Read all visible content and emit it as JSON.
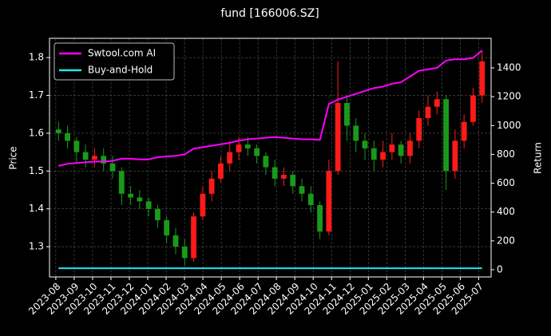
{
  "chart_data": {
    "type": "candlestick",
    "title": "fund [166006.SZ]",
    "ylabel": "Price",
    "y2label": "Return",
    "categories": [
      null,
      null,
      null,
      null,
      null,
      null,
      null,
      null,
      null,
      null,
      null,
      null,
      null,
      null,
      null,
      null,
      null,
      null,
      null,
      null,
      null,
      null,
      null,
      null,
      null,
      null,
      null,
      null,
      null,
      null,
      null,
      null,
      null,
      null,
      null,
      null,
      null,
      null,
      null,
      null,
      null,
      null,
      null,
      null,
      null,
      null,
      null,
      null
    ],
    "open": [
      1.61,
      1.6,
      1.58,
      1.55,
      1.53,
      1.54,
      1.52,
      1.5,
      1.44,
      1.43,
      1.42,
      1.4,
      1.37,
      1.33,
      1.3,
      1.27,
      1.38,
      1.44,
      1.48,
      1.52,
      1.55,
      1.57,
      1.56,
      1.54,
      1.51,
      1.48,
      1.49,
      1.46,
      1.44,
      1.41,
      1.34,
      1.5,
      1.68,
      1.62,
      1.58,
      1.56,
      1.53,
      1.55,
      1.57,
      1.54,
      1.58,
      1.64,
      1.67,
      1.69,
      1.5,
      1.58,
      1.63,
      1.7
    ],
    "high": [
      1.63,
      1.62,
      1.59,
      1.57,
      1.56,
      1.56,
      1.54,
      1.51,
      1.46,
      1.45,
      1.43,
      1.41,
      1.38,
      1.35,
      1.32,
      1.39,
      1.46,
      1.5,
      1.54,
      1.58,
      1.59,
      1.59,
      1.57,
      1.55,
      1.53,
      1.51,
      1.5,
      1.48,
      1.46,
      1.42,
      1.53,
      1.79,
      1.7,
      1.64,
      1.6,
      1.58,
      1.58,
      1.6,
      1.58,
      1.6,
      1.66,
      1.7,
      1.71,
      1.7,
      1.61,
      1.65,
      1.72,
      1.82
    ],
    "low": [
      1.58,
      1.56,
      1.52,
      1.51,
      1.51,
      1.5,
      1.48,
      1.41,
      1.41,
      1.4,
      1.38,
      1.35,
      1.31,
      1.28,
      1.25,
      1.26,
      1.37,
      1.42,
      1.47,
      1.5,
      1.53,
      1.54,
      1.52,
      1.49,
      1.46,
      1.46,
      1.44,
      1.42,
      1.39,
      1.32,
      1.33,
      1.49,
      1.58,
      1.55,
      1.53,
      1.5,
      1.51,
      1.53,
      1.52,
      1.52,
      1.56,
      1.62,
      1.65,
      1.45,
      1.48,
      1.56,
      1.62,
      1.68
    ],
    "close": [
      1.6,
      1.58,
      1.55,
      1.53,
      1.54,
      1.52,
      1.5,
      1.44,
      1.43,
      1.42,
      1.4,
      1.37,
      1.33,
      1.3,
      1.27,
      1.38,
      1.44,
      1.48,
      1.52,
      1.55,
      1.57,
      1.56,
      1.54,
      1.51,
      1.48,
      1.49,
      1.46,
      1.44,
      1.41,
      1.34,
      1.5,
      1.68,
      1.62,
      1.58,
      1.56,
      1.53,
      1.55,
      1.57,
      1.54,
      1.58,
      1.64,
      1.67,
      1.69,
      1.5,
      1.58,
      1.63,
      1.7,
      1.79
    ],
    "up_color": "#ff1a1a",
    "down_color": "#1a9a1a",
    "series": [
      {
        "name": "Swtool.com AI",
        "color": "#ff00ff",
        "axis": "y2",
        "values": [
          720,
          735,
          740,
          745,
          750,
          750,
          755,
          770,
          770,
          765,
          765,
          780,
          785,
          790,
          800,
          840,
          850,
          860,
          870,
          880,
          895,
          905,
          910,
          915,
          920,
          915,
          910,
          905,
          905,
          900,
          1150,
          1180,
          1200,
          1220,
          1240,
          1260,
          1270,
          1290,
          1300,
          1340,
          1380,
          1390,
          1400,
          1450,
          1460,
          1460,
          1470,
          1520
        ]
      },
      {
        "name": "Buy-and-Hold",
        "color": "#22e5f0",
        "axis": "y2",
        "values": [
          10,
          10,
          10,
          10,
          10,
          10,
          10,
          10,
          10,
          10,
          10,
          10,
          10,
          10,
          10,
          10,
          10,
          10,
          10,
          10,
          10,
          10,
          10,
          10,
          10,
          10,
          10,
          10,
          10,
          10,
          10,
          10,
          10,
          10,
          10,
          10,
          10,
          10,
          10,
          10,
          10,
          10,
          10,
          10,
          10,
          10,
          10,
          10
        ]
      }
    ],
    "xlim": [
      -1,
      48
    ],
    "xticks": [
      {
        "value": -0.3,
        "label": "2023-08"
      },
      {
        "value": 1.74,
        "label": "2023-09"
      },
      {
        "value": 3.78,
        "label": "2023-10"
      },
      {
        "value": 5.82,
        "label": "2023-11"
      },
      {
        "value": 7.86,
        "label": "2023-12"
      },
      {
        "value": 9.9,
        "label": "2024-01"
      },
      {
        "value": 11.94,
        "label": "2024-02"
      },
      {
        "value": 13.98,
        "label": "2024-03"
      },
      {
        "value": 16.02,
        "label": "2024-04"
      },
      {
        "value": 18.06,
        "label": "2024-05"
      },
      {
        "value": 20.1,
        "label": "2024-06"
      },
      {
        "value": 22.14,
        "label": "2024-07"
      },
      {
        "value": 24.18,
        "label": "2024-08"
      },
      {
        "value": 26.22,
        "label": "2024-09"
      },
      {
        "value": 28.26,
        "label": "2024-10"
      },
      {
        "value": 30.3,
        "label": "2024-11"
      },
      {
        "value": 32.34,
        "label": "2024-12"
      },
      {
        "value": 34.38,
        "label": "2025-01"
      },
      {
        "value": 36.42,
        "label": "2025-02"
      },
      {
        "value": 38.46,
        "label": "2025-03"
      },
      {
        "value": 40.5,
        "label": "2025-04"
      },
      {
        "value": 42.54,
        "label": "2025-05"
      },
      {
        "value": 44.58,
        "label": "2025-06"
      },
      {
        "value": 46.62,
        "label": "2025-07"
      }
    ],
    "ylim": [
      1.22,
      1.851
    ],
    "yticks": [
      1.3,
      1.4,
      1.5,
      1.6,
      1.7,
      1.8
    ],
    "y2lim": [
      -50,
      1605
    ],
    "y2ticks": [
      0,
      200,
      400,
      600,
      800,
      1000,
      1200,
      1400
    ],
    "grid": true,
    "legend": "upper left"
  }
}
